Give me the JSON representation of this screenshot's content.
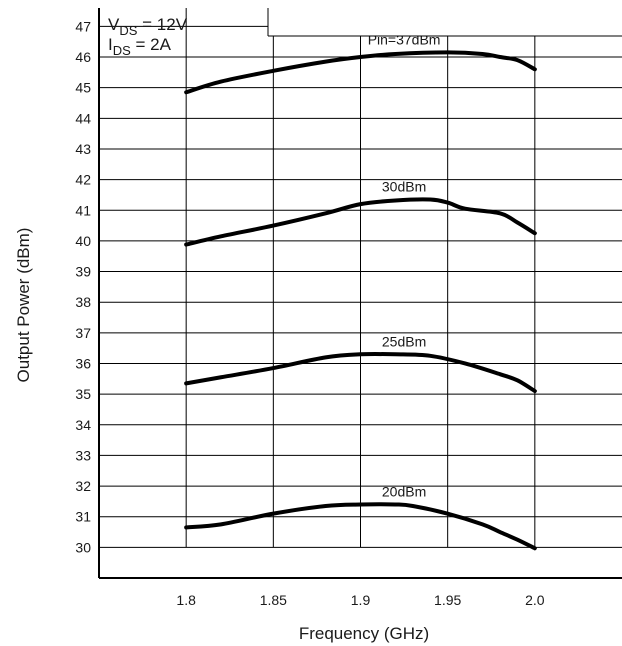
{
  "chart_data": {
    "type": "line",
    "xlabel": "Frequency (GHz)",
    "ylabel": "Output Power (dBm)",
    "xlim": [
      1.75,
      2.05
    ],
    "ylim": [
      29.0,
      47.6
    ],
    "xticks": [
      "1.8",
      "1.85",
      "1.9",
      "1.95",
      "2.0"
    ],
    "yticks": [
      "30",
      "31",
      "32",
      "33",
      "34",
      "35",
      "36",
      "37",
      "38",
      "39",
      "40",
      "41",
      "42",
      "43",
      "44",
      "45",
      "46",
      "47"
    ],
    "grid": true,
    "conditions": {
      "vds_sym": "V",
      "vds_sub": "DS",
      "vds_val": " = 12V",
      "ids_sym": "I",
      "ids_sub": "DS",
      "ids_val": " = 2A"
    },
    "series": [
      {
        "name": "Pin=37dBm",
        "x": [
          1.8,
          1.82,
          1.85,
          1.88,
          1.9,
          1.92,
          1.95,
          1.97,
          1.98,
          1.99,
          2.0
        ],
        "y": [
          44.85,
          45.2,
          45.55,
          45.85,
          46.0,
          46.1,
          46.15,
          46.1,
          46.0,
          45.9,
          45.6
        ]
      },
      {
        "name": "30dBm",
        "x": [
          1.8,
          1.82,
          1.85,
          1.88,
          1.9,
          1.92,
          1.94,
          1.95,
          1.96,
          1.98,
          1.99,
          2.0
        ],
        "y": [
          39.88,
          40.15,
          40.5,
          40.9,
          41.2,
          41.32,
          41.35,
          41.25,
          41.05,
          40.9,
          40.6,
          40.25
        ]
      },
      {
        "name": "25dBm",
        "x": [
          1.8,
          1.82,
          1.85,
          1.88,
          1.9,
          1.92,
          1.94,
          1.96,
          1.98,
          1.99,
          2.0
        ],
        "y": [
          35.35,
          35.55,
          35.85,
          36.2,
          36.3,
          36.3,
          36.25,
          36.0,
          35.65,
          35.45,
          35.1
        ]
      },
      {
        "name": "20dBm",
        "x": [
          1.8,
          1.82,
          1.85,
          1.88,
          1.9,
          1.92,
          1.93,
          1.95,
          1.97,
          1.98,
          1.99,
          2.0
        ],
        "y": [
          30.65,
          30.75,
          31.1,
          31.35,
          31.4,
          31.4,
          31.35,
          31.1,
          30.75,
          30.5,
          30.25,
          29.97
        ]
      }
    ]
  }
}
